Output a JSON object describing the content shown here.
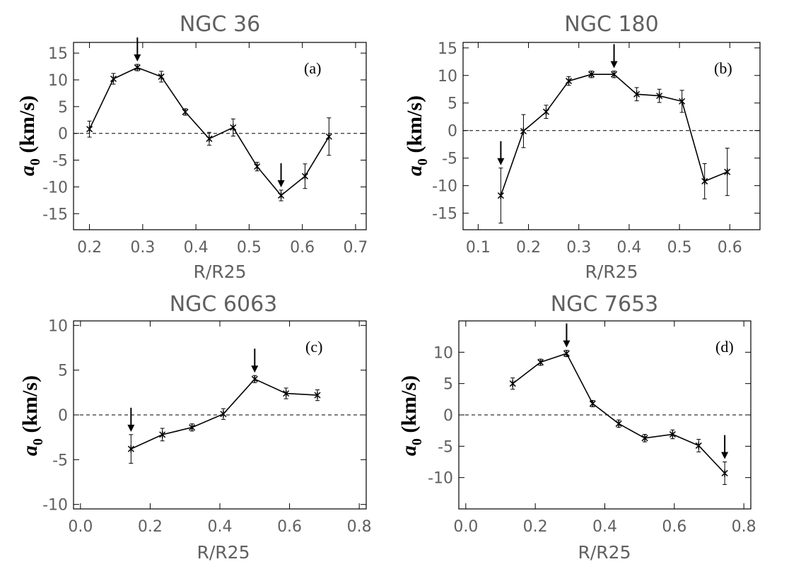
{
  "colors": {
    "axis_text": "#606060",
    "ink": "#000000",
    "background": "#ffffff"
  },
  "chart_data": [
    {
      "type": "line",
      "title": "NGC 36",
      "panel_label": "(a)",
      "xlabel": "R/R25",
      "ylabel_main": "a",
      "ylabel_sub": "0",
      "ylabel_units": " (km/s)",
      "xlim": [
        0.17,
        0.72
      ],
      "ylim": [
        -18,
        17
      ],
      "xticks": [
        0.2,
        0.3,
        0.4,
        0.5,
        0.6,
        0.7
      ],
      "xtick_labels": [
        "0.2",
        "0.3",
        "0.4",
        "0.5",
        "0.6",
        "0.7"
      ],
      "yticks": [
        -15,
        -10,
        -5,
        0,
        5,
        10,
        15
      ],
      "ytick_labels": [
        "-15",
        "-10",
        "-5",
        "0",
        "5",
        "10",
        "15"
      ],
      "zero_line": true,
      "series": [
        {
          "name": "a0",
          "x": [
            0.2,
            0.245,
            0.29,
            0.335,
            0.38,
            0.425,
            0.47,
            0.515,
            0.56,
            0.605,
            0.65
          ],
          "y": [
            0.8,
            10.2,
            12.3,
            10.6,
            4.0,
            -1.0,
            1.1,
            -6.2,
            -11.6,
            -8.0,
            -0.6
          ],
          "err": [
            1.5,
            1.0,
            0.6,
            1.0,
            0.6,
            1.2,
            1.6,
            0.8,
            1.0,
            2.3,
            3.5
          ]
        }
      ],
      "arrows_at_x": [
        0.29,
        0.56
      ]
    },
    {
      "type": "line",
      "title": "NGC 180",
      "panel_label": "(b)",
      "xlabel": "R/R25",
      "ylabel_main": "a",
      "ylabel_sub": "0",
      "ylabel_units": " (km/s)",
      "xlim": [
        0.07,
        0.66
      ],
      "ylim": [
        -18,
        16
      ],
      "xticks": [
        0.1,
        0.2,
        0.3,
        0.4,
        0.5,
        0.6
      ],
      "xtick_labels": [
        "0.1",
        "0.2",
        "0.3",
        "0.4",
        "0.5",
        "0.6"
      ],
      "yticks": [
        -15,
        -10,
        -5,
        0,
        5,
        10,
        15
      ],
      "ytick_labels": [
        "-15",
        "-10",
        "-5",
        "0",
        "5",
        "10",
        "15"
      ],
      "zero_line": true,
      "series": [
        {
          "name": "a0",
          "x": [
            0.145,
            0.19,
            0.235,
            0.28,
            0.325,
            0.37,
            0.415,
            0.46,
            0.505,
            0.55,
            0.595
          ],
          "y": [
            -11.8,
            -0.1,
            3.4,
            9.0,
            10.2,
            10.2,
            6.6,
            6.3,
            5.3,
            -9.2,
            -7.5
          ],
          "err": [
            5.0,
            3.0,
            1.2,
            0.8,
            0.6,
            0.6,
            1.2,
            1.2,
            2.0,
            3.2,
            4.3
          ]
        }
      ],
      "arrows_at_x": [
        0.145,
        0.37
      ]
    },
    {
      "type": "line",
      "title": "NGC 6063",
      "panel_label": "(c)",
      "xlabel": "R/R25",
      "ylabel_main": "a",
      "ylabel_sub": "0",
      "ylabel_units": " (km/s)",
      "xlim": [
        -0.02,
        0.82
      ],
      "ylim": [
        -10.5,
        10.5
      ],
      "xticks": [
        0.0,
        0.2,
        0.4,
        0.6,
        0.8
      ],
      "xtick_labels": [
        "0.0",
        "0.2",
        "0.4",
        "0.6",
        "0.8"
      ],
      "yticks": [
        -10,
        -5,
        0,
        5,
        10
      ],
      "ytick_labels": [
        "-10",
        "-5",
        "0",
        "5",
        "10"
      ],
      "zero_line": true,
      "series": [
        {
          "name": "a0",
          "x": [
            0.145,
            0.235,
            0.32,
            0.41,
            0.5,
            0.59,
            0.68
          ],
          "y": [
            -3.8,
            -2.2,
            -1.4,
            0.1,
            4.0,
            2.4,
            2.2
          ],
          "err": [
            1.6,
            0.7,
            0.4,
            0.6,
            0.4,
            0.6,
            0.6
          ]
        }
      ],
      "arrows_at_x": [
        0.145,
        0.5
      ]
    },
    {
      "type": "line",
      "title": "NGC 7653",
      "panel_label": "(d)",
      "xlabel": "R/R25",
      "ylabel_main": "a",
      "ylabel_sub": "0",
      "ylabel_units": " (km/s)",
      "xlim": [
        -0.02,
        0.82
      ],
      "ylim": [
        -15,
        15
      ],
      "xticks": [
        0.0,
        0.2,
        0.4,
        0.6,
        0.8
      ],
      "xtick_labels": [
        "0.0",
        "0.2",
        "0.4",
        "0.6",
        "0.8"
      ],
      "yticks": [
        -10,
        -5,
        0,
        5,
        10
      ],
      "ytick_labels": [
        "-10",
        "-5",
        "0",
        "5",
        "10"
      ],
      "zero_line": true,
      "series": [
        {
          "name": "a0",
          "x": [
            0.135,
            0.215,
            0.29,
            0.365,
            0.44,
            0.515,
            0.595,
            0.67,
            0.745
          ],
          "y": [
            5.0,
            8.4,
            9.8,
            1.8,
            -1.4,
            -3.7,
            -3.1,
            -4.9,
            -9.3
          ],
          "err": [
            0.9,
            0.5,
            0.5,
            0.5,
            0.6,
            0.6,
            0.7,
            1.0,
            1.8
          ]
        }
      ],
      "arrows_at_x": [
        0.29,
        0.745
      ]
    }
  ]
}
